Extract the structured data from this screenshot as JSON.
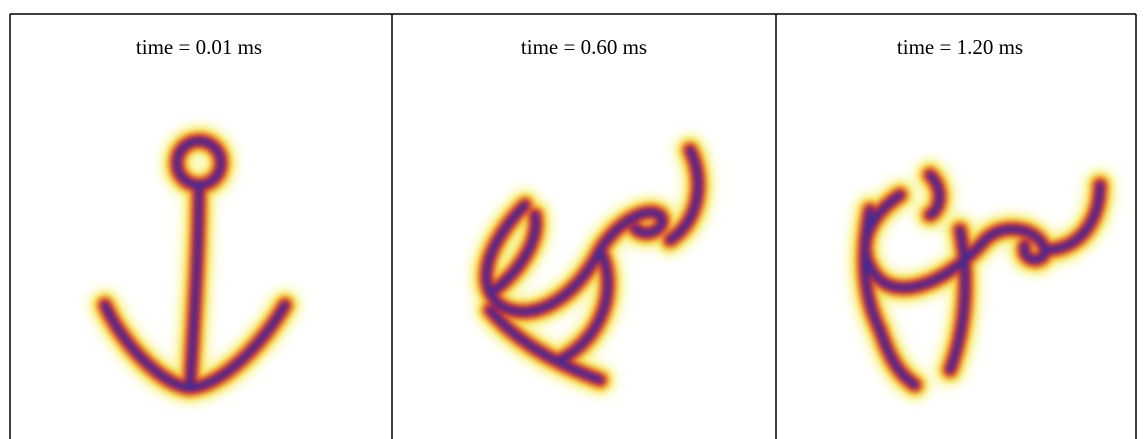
{
  "panels": [
    {
      "label": "time = 0.01 ms"
    },
    {
      "label": "time = 0.60 ms"
    },
    {
      "label": "time = 1.20 ms"
    }
  ]
}
